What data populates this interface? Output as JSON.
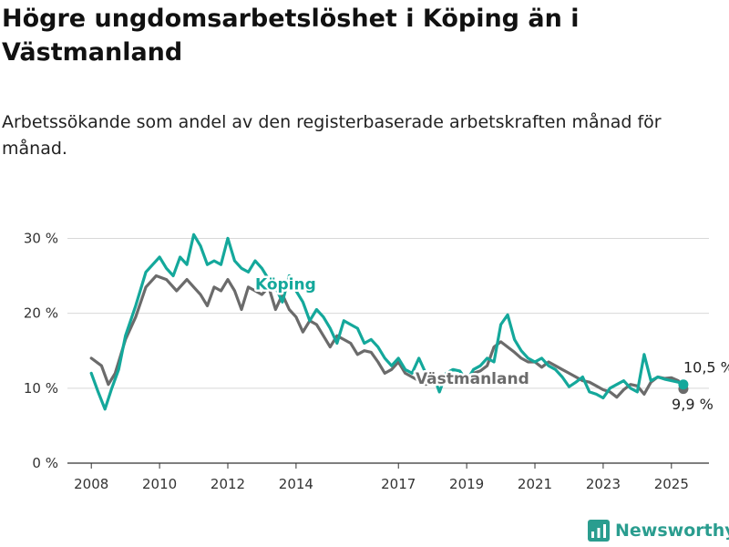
{
  "chart_data": {
    "type": "line",
    "title": "Högre ungdomsarbetslöshet i Köping än i Västmanland",
    "subtitle": "Arbetssökande som andel av den registerbaserade arbetskraften månad för månad.",
    "y_ticks": [
      "0 %",
      "10 %",
      "20 %",
      "30 %"
    ],
    "y_tick_values": [
      0,
      10,
      20,
      30
    ],
    "x_ticks": [
      "2008",
      "2010",
      "2012",
      "2014",
      "2017",
      "2019",
      "2021",
      "2023",
      "2025"
    ],
    "x_tick_values": [
      2008,
      2010,
      2012,
      2014,
      2017,
      2019,
      2021,
      2023,
      2025
    ],
    "ylim": [
      0,
      32
    ],
    "xlim": [
      2007.3,
      2026.1
    ],
    "grid": true,
    "series": [
      {
        "name": "Västmanland",
        "color": "#6b6b6b",
        "end_label": "9,9 %",
        "x": [
          2008.0,
          2008.3,
          2008.5,
          2008.7,
          2009.0,
          2009.3,
          2009.6,
          2009.9,
          2010.2,
          2010.5,
          2010.8,
          2011.0,
          2011.2,
          2011.4,
          2011.6,
          2011.8,
          2012.0,
          2012.2,
          2012.4,
          2012.6,
          2012.8,
          2013.0,
          2013.2,
          2013.4,
          2013.6,
          2013.8,
          2014.0,
          2014.2,
          2014.4,
          2014.6,
          2014.8,
          2015.0,
          2015.2,
          2015.4,
          2015.6,
          2015.8,
          2016.0,
          2016.2,
          2016.4,
          2016.6,
          2016.8,
          2017.0,
          2017.2,
          2017.4,
          2017.6,
          2017.8,
          2018.0,
          2018.2,
          2018.4,
          2018.6,
          2018.8,
          2019.0,
          2019.2,
          2019.4,
          2019.6,
          2019.8,
          2020.0,
          2020.2,
          2020.4,
          2020.6,
          2020.8,
          2021.0,
          2021.2,
          2021.4,
          2021.6,
          2021.8,
          2022.0,
          2022.2,
          2022.4,
          2022.6,
          2022.8,
          2023.0,
          2023.2,
          2023.4,
          2023.6,
          2023.8,
          2024.0,
          2024.2,
          2024.4,
          2024.6,
          2024.8,
          2025.0,
          2025.2,
          2025.35
        ],
        "values": [
          14.0,
          13.0,
          10.5,
          12.0,
          16.5,
          19.5,
          23.5,
          25.0,
          24.5,
          23.0,
          24.5,
          23.5,
          22.5,
          21.0,
          23.5,
          23.0,
          24.5,
          23.0,
          20.5,
          23.5,
          23.0,
          22.5,
          23.5,
          20.5,
          22.5,
          20.5,
          19.5,
          17.5,
          19.0,
          18.5,
          17.0,
          15.5,
          17.0,
          16.5,
          16.0,
          14.5,
          15.0,
          14.8,
          13.5,
          12.0,
          12.5,
          13.5,
          12.0,
          11.5,
          11.0,
          10.5,
          10.7,
          11.0,
          11.5,
          11.0,
          11.0,
          11.5,
          12.0,
          12.3,
          13.0,
          15.5,
          16.2,
          15.5,
          14.8,
          14.0,
          13.5,
          13.5,
          12.8,
          13.5,
          13.0,
          12.5,
          12.0,
          11.5,
          11.0,
          10.8,
          10.3,
          9.8,
          9.5,
          8.8,
          9.8,
          10.5,
          10.3,
          9.2,
          10.8,
          11.5,
          11.3,
          11.4,
          11.0,
          9.9
        ]
      },
      {
        "name": "Köping",
        "color": "#14a89b",
        "end_label": "10,5 %",
        "x": [
          2008.0,
          2008.2,
          2008.4,
          2008.6,
          2008.8,
          2009.0,
          2009.3,
          2009.6,
          2009.8,
          2010.0,
          2010.2,
          2010.4,
          2010.6,
          2010.8,
          2011.0,
          2011.2,
          2011.4,
          2011.6,
          2011.8,
          2012.0,
          2012.2,
          2012.4,
          2012.6,
          2012.8,
          2013.0,
          2013.2,
          2013.4,
          2013.6,
          2013.8,
          2014.0,
          2014.2,
          2014.4,
          2014.6,
          2014.8,
          2015.0,
          2015.2,
          2015.4,
          2015.6,
          2015.8,
          2016.0,
          2016.2,
          2016.4,
          2016.6,
          2016.8,
          2017.0,
          2017.2,
          2017.4,
          2017.6,
          2017.8,
          2018.0,
          2018.2,
          2018.4,
          2018.6,
          2018.8,
          2019.0,
          2019.2,
          2019.4,
          2019.6,
          2019.8,
          2020.0,
          2020.2,
          2020.4,
          2020.6,
          2020.8,
          2021.0,
          2021.2,
          2021.4,
          2021.6,
          2021.8,
          2022.0,
          2022.2,
          2022.4,
          2022.6,
          2022.8,
          2023.0,
          2023.2,
          2023.4,
          2023.6,
          2023.8,
          2024.0,
          2024.2,
          2024.4,
          2024.6,
          2024.8,
          2025.0,
          2025.2,
          2025.35
        ],
        "values": [
          12.0,
          9.5,
          7.2,
          10.0,
          12.5,
          17.0,
          21.0,
          25.5,
          26.5,
          27.5,
          26.0,
          25.0,
          27.5,
          26.5,
          30.5,
          29.0,
          26.5,
          27.0,
          26.5,
          30.0,
          27.0,
          26.0,
          25.5,
          27.0,
          26.0,
          24.5,
          23.5,
          21.5,
          25.0,
          23.0,
          21.5,
          19.0,
          20.5,
          19.5,
          18.0,
          16.0,
          19.0,
          18.5,
          18.0,
          16.0,
          16.5,
          15.5,
          14.0,
          13.0,
          14.0,
          12.5,
          12.0,
          14.0,
          12.0,
          12.0,
          9.5,
          12.0,
          12.5,
          12.3,
          11.0,
          12.5,
          13.0,
          14.0,
          13.5,
          18.5,
          19.8,
          16.5,
          15.0,
          14.0,
          13.5,
          14.0,
          13.0,
          12.5,
          11.5,
          10.2,
          10.8,
          11.5,
          9.5,
          9.2,
          8.7,
          10.0,
          10.5,
          11.0,
          10.0,
          9.5,
          14.5,
          11.0,
          11.5,
          11.2,
          11.0,
          10.8,
          10.5
        ]
      }
    ]
  },
  "brand": {
    "name": "Newsworthy"
  }
}
